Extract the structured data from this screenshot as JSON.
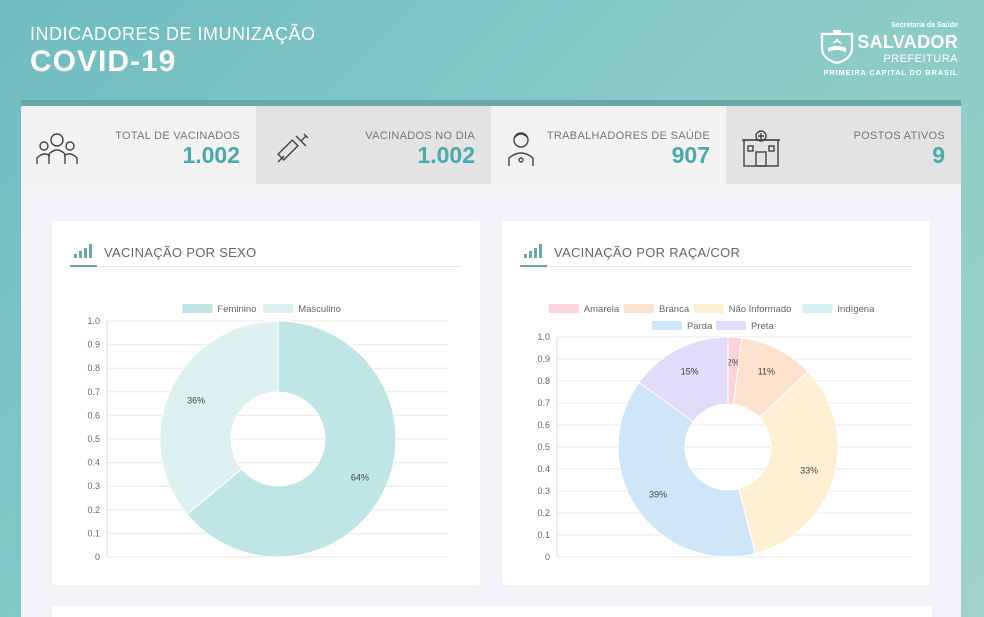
{
  "header": {
    "subtitle": "INDICADORES DE IMUNIZAÇÃO",
    "title": "COVID-19"
  },
  "logo": {
    "line1": "Secretaria da Saúde",
    "line2": "SALVADOR",
    "line3": "PREFEITURA",
    "line4": "PRIMEIRA CAPITAL DO BRASIL"
  },
  "kpis": [
    {
      "label": "TOTAL DE VACINADOS",
      "value": "1.002",
      "icon": "people-icon"
    },
    {
      "label": "VACINADOS NO DIA",
      "value": "1.002",
      "icon": "syringe-icon"
    },
    {
      "label": "TRABALHADORES DE SAÚDE",
      "value": "907",
      "icon": "health-worker-icon"
    },
    {
      "label": "POSTOS ATIVOS",
      "value": "9",
      "icon": "building-icon"
    }
  ],
  "colors": {
    "accent": "#4aa9ad"
  },
  "chart_data": [
    {
      "type": "pie",
      "title": "VACINAÇÃO POR SEXO",
      "ylim": [
        0,
        1.0
      ],
      "yticks": [
        "1.0",
        "0.9",
        "0.8",
        "0.7",
        "0.6",
        "0.5",
        "0.4",
        "0.3",
        "0.2",
        "0.1",
        "0"
      ],
      "legend_position": "top",
      "slices": [
        {
          "name": "Feminino",
          "value": 64,
          "label": "64%",
          "color": "#bfe6e4"
        },
        {
          "name": "Masculino",
          "value": 36,
          "label": "36%",
          "color": "#ddf1f0"
        }
      ]
    },
    {
      "type": "pie",
      "title": "VACINAÇÃO POR RAÇA/COR",
      "ylim": [
        0,
        1.0
      ],
      "yticks": [
        "1.0",
        "0.9",
        "0.8",
        "0.7",
        "0.6",
        "0.5",
        "0.4",
        "0.3",
        "0.2",
        "0.1",
        "0"
      ],
      "legend_position": "top",
      "slices": [
        {
          "name": "Amarela",
          "value": 2,
          "label": "2%",
          "color": "#fcd2db"
        },
        {
          "name": "Branca",
          "value": 11,
          "label": "11%",
          "color": "#fde3cd"
        },
        {
          "name": "Não Informado",
          "value": 33,
          "label": "33%",
          "color": "#fdf0d2"
        },
        {
          "name": "Indígena",
          "value": 0,
          "label": "",
          "color": "#d4f0ef"
        },
        {
          "name": "Parda",
          "value": 39,
          "label": "39%",
          "color": "#cfe6f8"
        },
        {
          "name": "Preta",
          "value": 15,
          "label": "15%",
          "color": "#e3dbfa"
        }
      ]
    }
  ]
}
